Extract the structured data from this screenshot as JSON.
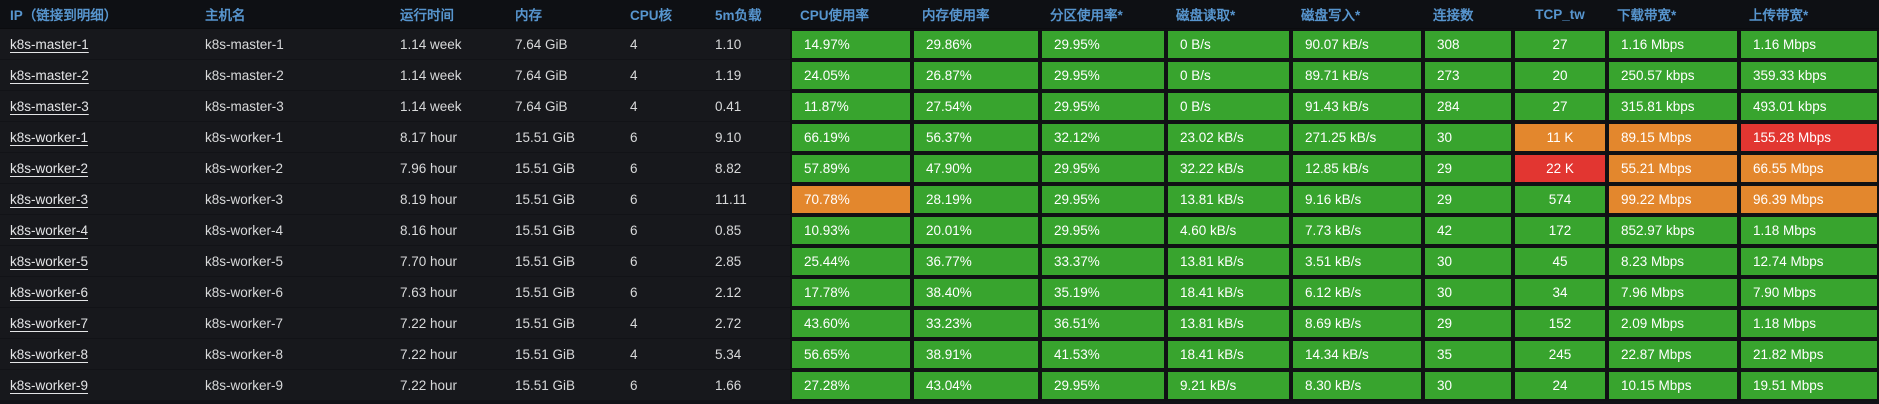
{
  "colors": {
    "green": "#38a42e",
    "orange": "#e3872d",
    "red": "#e23631",
    "header_text": "#5795ce"
  },
  "table": {
    "columns": [
      {
        "key": "ip",
        "label": "IP（链接到明细）",
        "type": "link",
        "colored": false
      },
      {
        "key": "hostname",
        "label": "主机名",
        "type": "text",
        "colored": false
      },
      {
        "key": "uptime",
        "label": "运行时间",
        "type": "text",
        "colored": false
      },
      {
        "key": "memory",
        "label": "内存",
        "type": "text",
        "colored": false
      },
      {
        "key": "cpu_cores",
        "label": "CPU核",
        "type": "text",
        "colored": false
      },
      {
        "key": "load_5m",
        "label": "5m负载",
        "type": "text",
        "colored": false
      },
      {
        "key": "cpu_usage",
        "label": "CPU使用率",
        "type": "text",
        "colored": true
      },
      {
        "key": "mem_usage",
        "label": "内存使用率",
        "type": "text",
        "colored": true
      },
      {
        "key": "partition_usage",
        "label": "分区使用率*",
        "type": "text",
        "colored": true
      },
      {
        "key": "disk_read",
        "label": "磁盘读取*",
        "type": "text",
        "colored": true
      },
      {
        "key": "disk_write",
        "label": "磁盘写入*",
        "type": "text",
        "colored": true
      },
      {
        "key": "connections",
        "label": "连接数",
        "type": "text",
        "colored": true
      },
      {
        "key": "tcp_tw",
        "label": "TCP_tw",
        "type": "text",
        "colored": true
      },
      {
        "key": "download_bw",
        "label": "下载带宽*",
        "type": "text",
        "colored": true
      },
      {
        "key": "upload_bw",
        "label": "上传带宽*",
        "type": "text",
        "colored": true
      }
    ],
    "rows": [
      {
        "values": [
          "k8s-master-1",
          "k8s-master-1",
          "1.14 week",
          "7.64 GiB",
          "4",
          "1.10",
          "14.97%",
          "29.86%",
          "29.95%",
          "0 B/s",
          "90.07 kB/s",
          "308",
          "27",
          "1.16 Mbps",
          "1.16 Mbps"
        ],
        "cell_colors": [
          "green",
          "green",
          "green",
          "green",
          "green",
          "green",
          "green",
          "green",
          "green"
        ]
      },
      {
        "values": [
          "k8s-master-2",
          "k8s-master-2",
          "1.14 week",
          "7.64 GiB",
          "4",
          "1.19",
          "24.05%",
          "26.87%",
          "29.95%",
          "0 B/s",
          "89.71 kB/s",
          "273",
          "20",
          "250.57 kbps",
          "359.33 kbps"
        ],
        "cell_colors": [
          "green",
          "green",
          "green",
          "green",
          "green",
          "green",
          "green",
          "green",
          "green"
        ]
      },
      {
        "values": [
          "k8s-master-3",
          "k8s-master-3",
          "1.14 week",
          "7.64 GiB",
          "4",
          "0.41",
          "11.87%",
          "27.54%",
          "29.95%",
          "0 B/s",
          "91.43 kB/s",
          "284",
          "27",
          "315.81 kbps",
          "493.01 kbps"
        ],
        "cell_colors": [
          "green",
          "green",
          "green",
          "green",
          "green",
          "green",
          "green",
          "green",
          "green"
        ]
      },
      {
        "values": [
          "k8s-worker-1",
          "k8s-worker-1",
          "8.17 hour",
          "15.51 GiB",
          "6",
          "9.10",
          "66.19%",
          "56.37%",
          "32.12%",
          "23.02 kB/s",
          "271.25 kB/s",
          "30",
          "11 K",
          "89.15 Mbps",
          "155.28 Mbps"
        ],
        "cell_colors": [
          "green",
          "green",
          "green",
          "green",
          "green",
          "green",
          "orange",
          "orange",
          "red"
        ]
      },
      {
        "values": [
          "k8s-worker-2",
          "k8s-worker-2",
          "7.96 hour",
          "15.51 GiB",
          "6",
          "8.82",
          "57.89%",
          "47.90%",
          "29.95%",
          "32.22 kB/s",
          "12.85 kB/s",
          "29",
          "22 K",
          "55.21 Mbps",
          "66.55 Mbps"
        ],
        "cell_colors": [
          "green",
          "green",
          "green",
          "green",
          "green",
          "green",
          "red",
          "orange",
          "orange"
        ]
      },
      {
        "values": [
          "k8s-worker-3",
          "k8s-worker-3",
          "8.19 hour",
          "15.51 GiB",
          "6",
          "11.11",
          "70.78%",
          "28.19%",
          "29.95%",
          "13.81 kB/s",
          "9.16 kB/s",
          "29",
          "574",
          "99.22 Mbps",
          "96.39 Mbps"
        ],
        "cell_colors": [
          "orange",
          "green",
          "green",
          "green",
          "green",
          "green",
          "green",
          "orange",
          "orange"
        ]
      },
      {
        "values": [
          "k8s-worker-4",
          "k8s-worker-4",
          "8.16 hour",
          "15.51 GiB",
          "6",
          "0.85",
          "10.93%",
          "20.01%",
          "29.95%",
          "4.60 kB/s",
          "7.73 kB/s",
          "42",
          "172",
          "852.97 kbps",
          "1.18 Mbps"
        ],
        "cell_colors": [
          "green",
          "green",
          "green",
          "green",
          "green",
          "green",
          "green",
          "green",
          "green"
        ]
      },
      {
        "values": [
          "k8s-worker-5",
          "k8s-worker-5",
          "7.70 hour",
          "15.51 GiB",
          "6",
          "2.85",
          "25.44%",
          "36.77%",
          "33.37%",
          "13.81 kB/s",
          "3.51 kB/s",
          "30",
          "45",
          "8.23 Mbps",
          "12.74 Mbps"
        ],
        "cell_colors": [
          "green",
          "green",
          "green",
          "green",
          "green",
          "green",
          "green",
          "green",
          "green"
        ]
      },
      {
        "values": [
          "k8s-worker-6",
          "k8s-worker-6",
          "7.63 hour",
          "15.51 GiB",
          "6",
          "2.12",
          "17.78%",
          "38.40%",
          "35.19%",
          "18.41 kB/s",
          "6.12 kB/s",
          "30",
          "34",
          "7.96 Mbps",
          "7.90 Mbps"
        ],
        "cell_colors": [
          "green",
          "green",
          "green",
          "green",
          "green",
          "green",
          "green",
          "green",
          "green"
        ]
      },
      {
        "values": [
          "k8s-worker-7",
          "k8s-worker-7",
          "7.22 hour",
          "15.51 GiB",
          "4",
          "2.72",
          "43.60%",
          "33.23%",
          "36.51%",
          "13.81 kB/s",
          "8.69 kB/s",
          "29",
          "152",
          "2.09 Mbps",
          "1.18 Mbps"
        ],
        "cell_colors": [
          "green",
          "green",
          "green",
          "green",
          "green",
          "green",
          "green",
          "green",
          "green"
        ]
      },
      {
        "values": [
          "k8s-worker-8",
          "k8s-worker-8",
          "7.22 hour",
          "15.51 GiB",
          "4",
          "5.34",
          "56.65%",
          "38.91%",
          "41.53%",
          "18.41 kB/s",
          "14.34 kB/s",
          "35",
          "245",
          "22.87 Mbps",
          "21.82 Mbps"
        ],
        "cell_colors": [
          "green",
          "green",
          "green",
          "green",
          "green",
          "green",
          "green",
          "green",
          "green"
        ]
      },
      {
        "values": [
          "k8s-worker-9",
          "k8s-worker-9",
          "7.22 hour",
          "15.51 GiB",
          "6",
          "1.66",
          "27.28%",
          "43.04%",
          "29.95%",
          "9.21 kB/s",
          "8.30 kB/s",
          "30",
          "24",
          "10.15 Mbps",
          "19.51 Mbps"
        ],
        "cell_colors": [
          "green",
          "green",
          "green",
          "green",
          "green",
          "green",
          "green",
          "green",
          "green"
        ]
      }
    ]
  }
}
